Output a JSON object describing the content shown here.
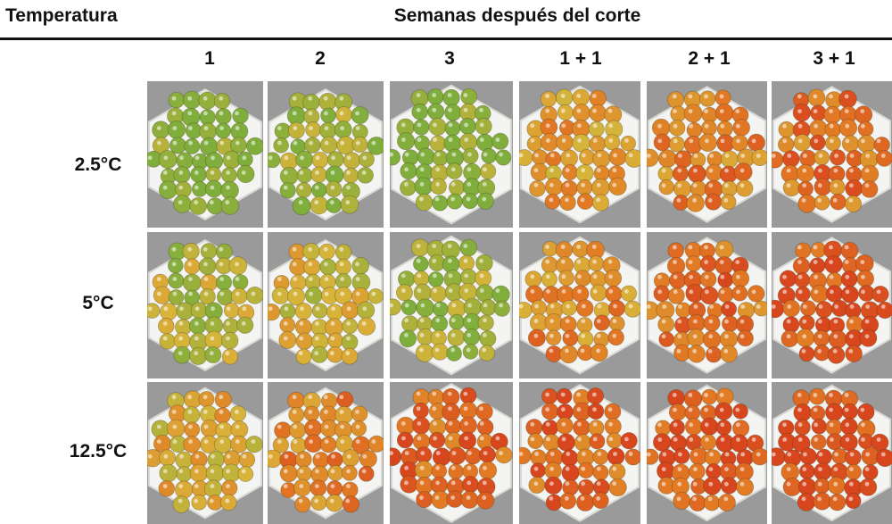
{
  "header": {
    "row_axis_title": "Temperatura",
    "column_axis_title": "Semanas después del corte"
  },
  "columns": [
    "1",
    "2",
    "3",
    "1 + 1",
    "2 + 1",
    "3 + 1"
  ],
  "rows": [
    "2.5°C",
    "5°C",
    "12.5°C"
  ],
  "ripeness": [
    [
      0.05,
      0.15,
      0.05,
      0.55,
      0.7,
      0.75
    ],
    [
      0.25,
      0.35,
      0.15,
      0.65,
      0.8,
      0.95
    ],
    [
      0.45,
      0.7,
      0.85,
      0.85,
      0.95,
      1.0
    ]
  ],
  "colors": {
    "green": "#7fae3c",
    "yellow": "#d9b43a",
    "orange": "#e27a24",
    "red": "#d8461e",
    "tray": "#f4f4f2",
    "background": "#9a9a9a"
  }
}
